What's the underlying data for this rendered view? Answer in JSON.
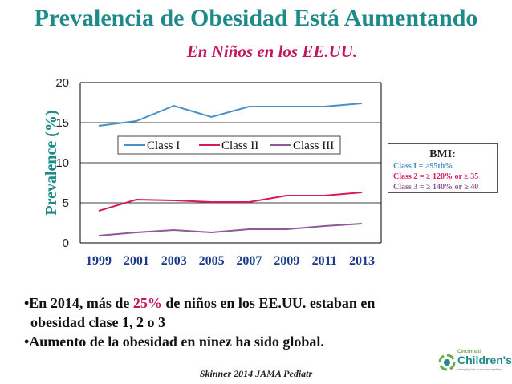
{
  "slide": {
    "title": "Prevalencia de Obesidad Está Aumentando",
    "subtitle": "En Niños en los EE.UU."
  },
  "bmi": {
    "title": "BMI:",
    "class1": "Class I =  ≥95th%",
    "class2": "Class 2  = ≥ 120%  or ≥ 35",
    "class3": "Class 3   = ≥ 140% or ≥ 40",
    "colors": {
      "class1": "#4a90c8",
      "class2": "#d81b60",
      "class3": "#8e5a9a"
    }
  },
  "bullets": {
    "b1_pre": "•En 2014, más de ",
    "b1_pct": "25%",
    "b1_post": " de niños en los EE.UU. estaban en",
    "b1_line2": "obesidad clase 1, 2 o 3",
    "b2": "•Aumento de la obesidad en ninez ha sido global."
  },
  "citation": "Skinner 2014 JAMA Pediatr",
  "logo": {
    "small": "Cincinnati",
    "big": "Children's",
    "tag": "changing the outcome together",
    "icon": "childrens-logo-icon"
  },
  "chart_data": {
    "type": "line",
    "ylabel": "Prevalence (%)",
    "x": [
      "1999",
      "2001",
      "2003",
      "2005",
      "2007",
      "2009",
      "2011",
      "2013"
    ],
    "ylim": [
      0,
      20
    ],
    "yticks": [
      0,
      5,
      10,
      15,
      20
    ],
    "grid": true,
    "legend_position": "center",
    "series": [
      {
        "name": "Class I",
        "color": "#4a90c8",
        "values": [
          14.6,
          15.2,
          17.1,
          15.7,
          17.0,
          17.0,
          17.0,
          17.4
        ]
      },
      {
        "name": "Class II",
        "color": "#d81b60",
        "values": [
          4.0,
          5.4,
          5.3,
          5.1,
          5.1,
          5.9,
          5.9,
          6.3
        ]
      },
      {
        "name": "Class III",
        "color": "#8e5a9a",
        "values": [
          0.9,
          1.3,
          1.6,
          1.3,
          1.7,
          1.7,
          2.1,
          2.4
        ]
      }
    ]
  }
}
